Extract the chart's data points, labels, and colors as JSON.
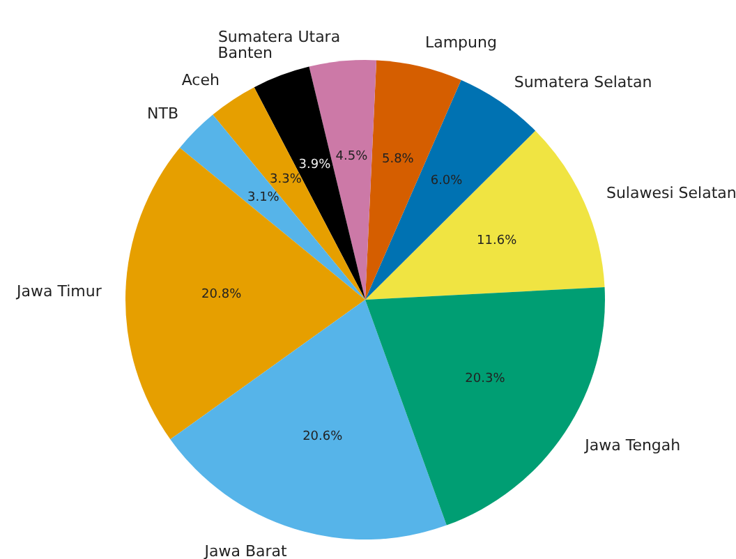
{
  "chart_data": {
    "type": "pie",
    "categories": [
      "Sulawesi Selatan",
      "Sumatera Selatan",
      "Lampung",
      "Sumatera Utara",
      "Banten",
      "Aceh",
      "NTB",
      "Jawa Timur",
      "Jawa Barat",
      "Jawa Tengah"
    ],
    "values": [
      11.6,
      6.0,
      5.8,
      4.5,
      3.9,
      3.3,
      3.1,
      20.8,
      20.6,
      20.3
    ],
    "colors": [
      "#f0e442",
      "#0072b2",
      "#d55e00",
      "#cc79a7",
      "#000000",
      "#e69f00",
      "#56b4e9",
      "#e69f00",
      "#56b4e9",
      "#009e73"
    ],
    "value_labels": [
      "11.6%",
      "6.0%",
      "5.8%",
      "4.5%",
      "3.9%",
      "3.3%",
      "3.1%",
      "20.8%",
      "20.6%",
      "20.3%"
    ]
  }
}
